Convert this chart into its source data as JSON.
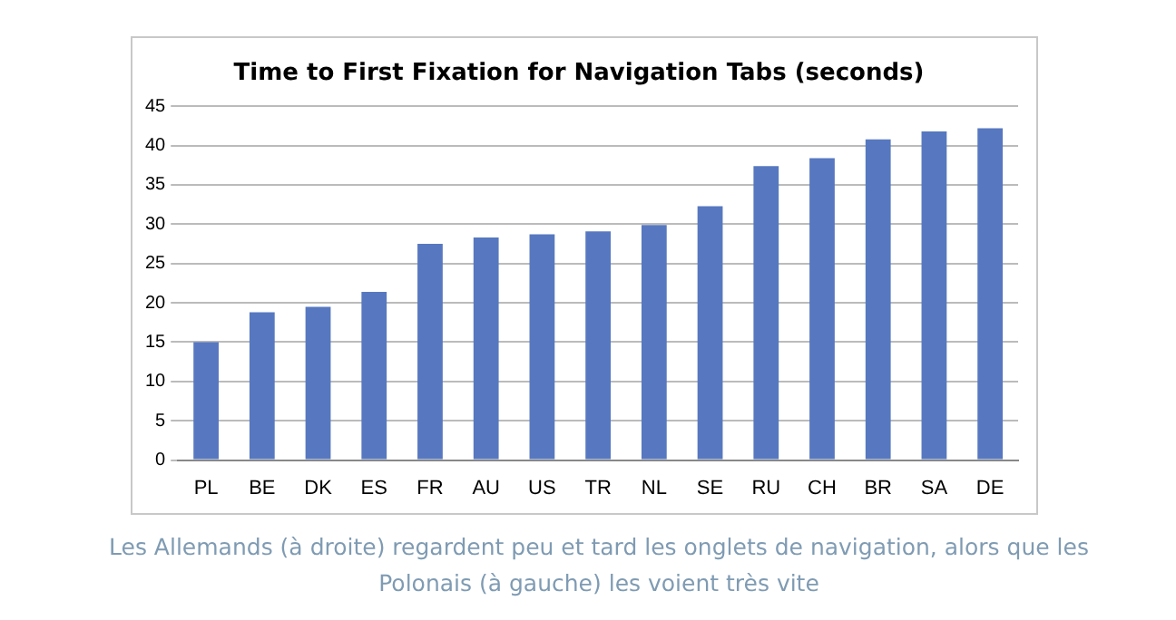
{
  "chart_data": {
    "type": "bar",
    "title": "Time to First Fixation for Navigation Tabs (seconds)",
    "categories": [
      "PL",
      "BE",
      "DK",
      "ES",
      "FR",
      "AU",
      "US",
      "TR",
      "NL",
      "SE",
      "RU",
      "CH",
      "BR",
      "SA",
      "DE"
    ],
    "values": [
      15,
      18.8,
      19.5,
      21.4,
      27.5,
      28.3,
      28.7,
      29.1,
      29.9,
      32.3,
      37.4,
      38.4,
      40.8,
      41.8,
      42.2
    ],
    "color": "#5778c0",
    "ylim": [
      0,
      45
    ],
    "yticks": [
      0,
      5,
      10,
      15,
      20,
      25,
      30,
      35,
      40,
      45
    ],
    "grid": "y",
    "annotations": [
      "Les Allemands (à droite) regardent peu et tard les onglets de navigation, alors que les Polonais (à gauche) les voient très vite"
    ]
  }
}
